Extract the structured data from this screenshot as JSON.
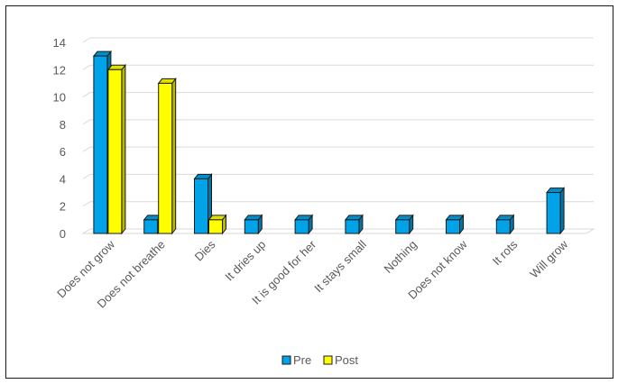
{
  "chart_data": {
    "type": "bar",
    "style": "3d-clustered-column",
    "categories": [
      "Does not grow",
      "Does not breathe",
      "Dies",
      "It dries up",
      "It is good for her",
      "It stays small",
      "Nothing",
      "Does not know",
      "It rots",
      "Will grow"
    ],
    "series": [
      {
        "name": "Pre",
        "values": [
          13,
          1,
          4,
          1,
          1,
          1,
          1,
          1,
          1,
          3
        ],
        "color": "#00A2E8"
      },
      {
        "name": "Post",
        "values": [
          12,
          11,
          1,
          0,
          0,
          0,
          0,
          0,
          0,
          0
        ],
        "color": "#FFFF00"
      }
    ],
    "yticks": [
      0,
      2,
      4,
      6,
      8,
      10,
      12,
      14
    ],
    "ylim": [
      0,
      14
    ],
    "grid": true,
    "legend_position": "bottom"
  }
}
